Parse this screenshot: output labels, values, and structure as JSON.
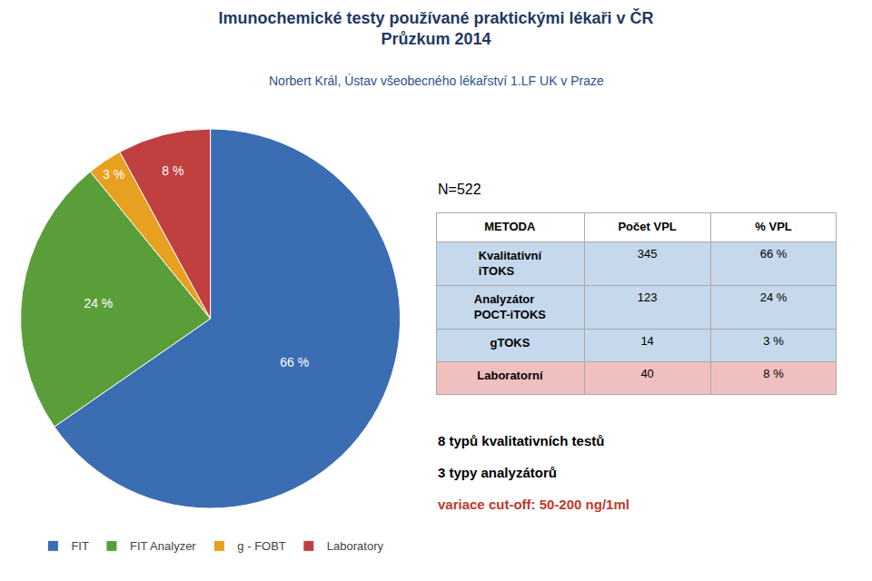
{
  "chart_data": {
    "type": "pie",
    "title": [
      "Imunochemické testy používané praktickými lékaři v ČR",
      "Průzkum 2014"
    ],
    "subtitle": "Norbert Král, Ústav všeobecného lékařství 1.LF UK v Praze",
    "categories": [
      "FIT",
      "FIT Analyzer",
      "g - FOBT",
      "Laboratory"
    ],
    "values": [
      66,
      24,
      3,
      8
    ],
    "value_labels": [
      "66 %",
      "24 %",
      "3 %",
      "8 %"
    ],
    "data_labels": true,
    "colors": [
      "#3B6DB3",
      "#5A9E3A",
      "#E8A020",
      "#C04040"
    ],
    "legend": "bottom",
    "annotations": [
      {
        "text": "N=522"
      },
      {
        "text": "8 typů kvalitativních testů"
      },
      {
        "text": "3 typy analyzátorů"
      },
      {
        "text": "variace cut-off: 50-200 ng/1ml",
        "color": "#C0392B"
      }
    ],
    "table": {
      "headers": [
        "METODA",
        "Počet VPL",
        "% VPL"
      ],
      "rows": [
        [
          "Kvalitativní\niTOKS",
          "345",
          "66 %"
        ],
        [
          "Analyzátor\nPOCT-iTOKS",
          "123",
          "24 %"
        ],
        [
          "gTOKS",
          "14",
          "3 %"
        ],
        [
          "Laboratorní",
          "40",
          "8 %"
        ]
      ],
      "row_colors": [
        "#C5D8EC",
        "#C5D8EC",
        "#C5D8EC",
        "#F0C0C0"
      ]
    }
  }
}
